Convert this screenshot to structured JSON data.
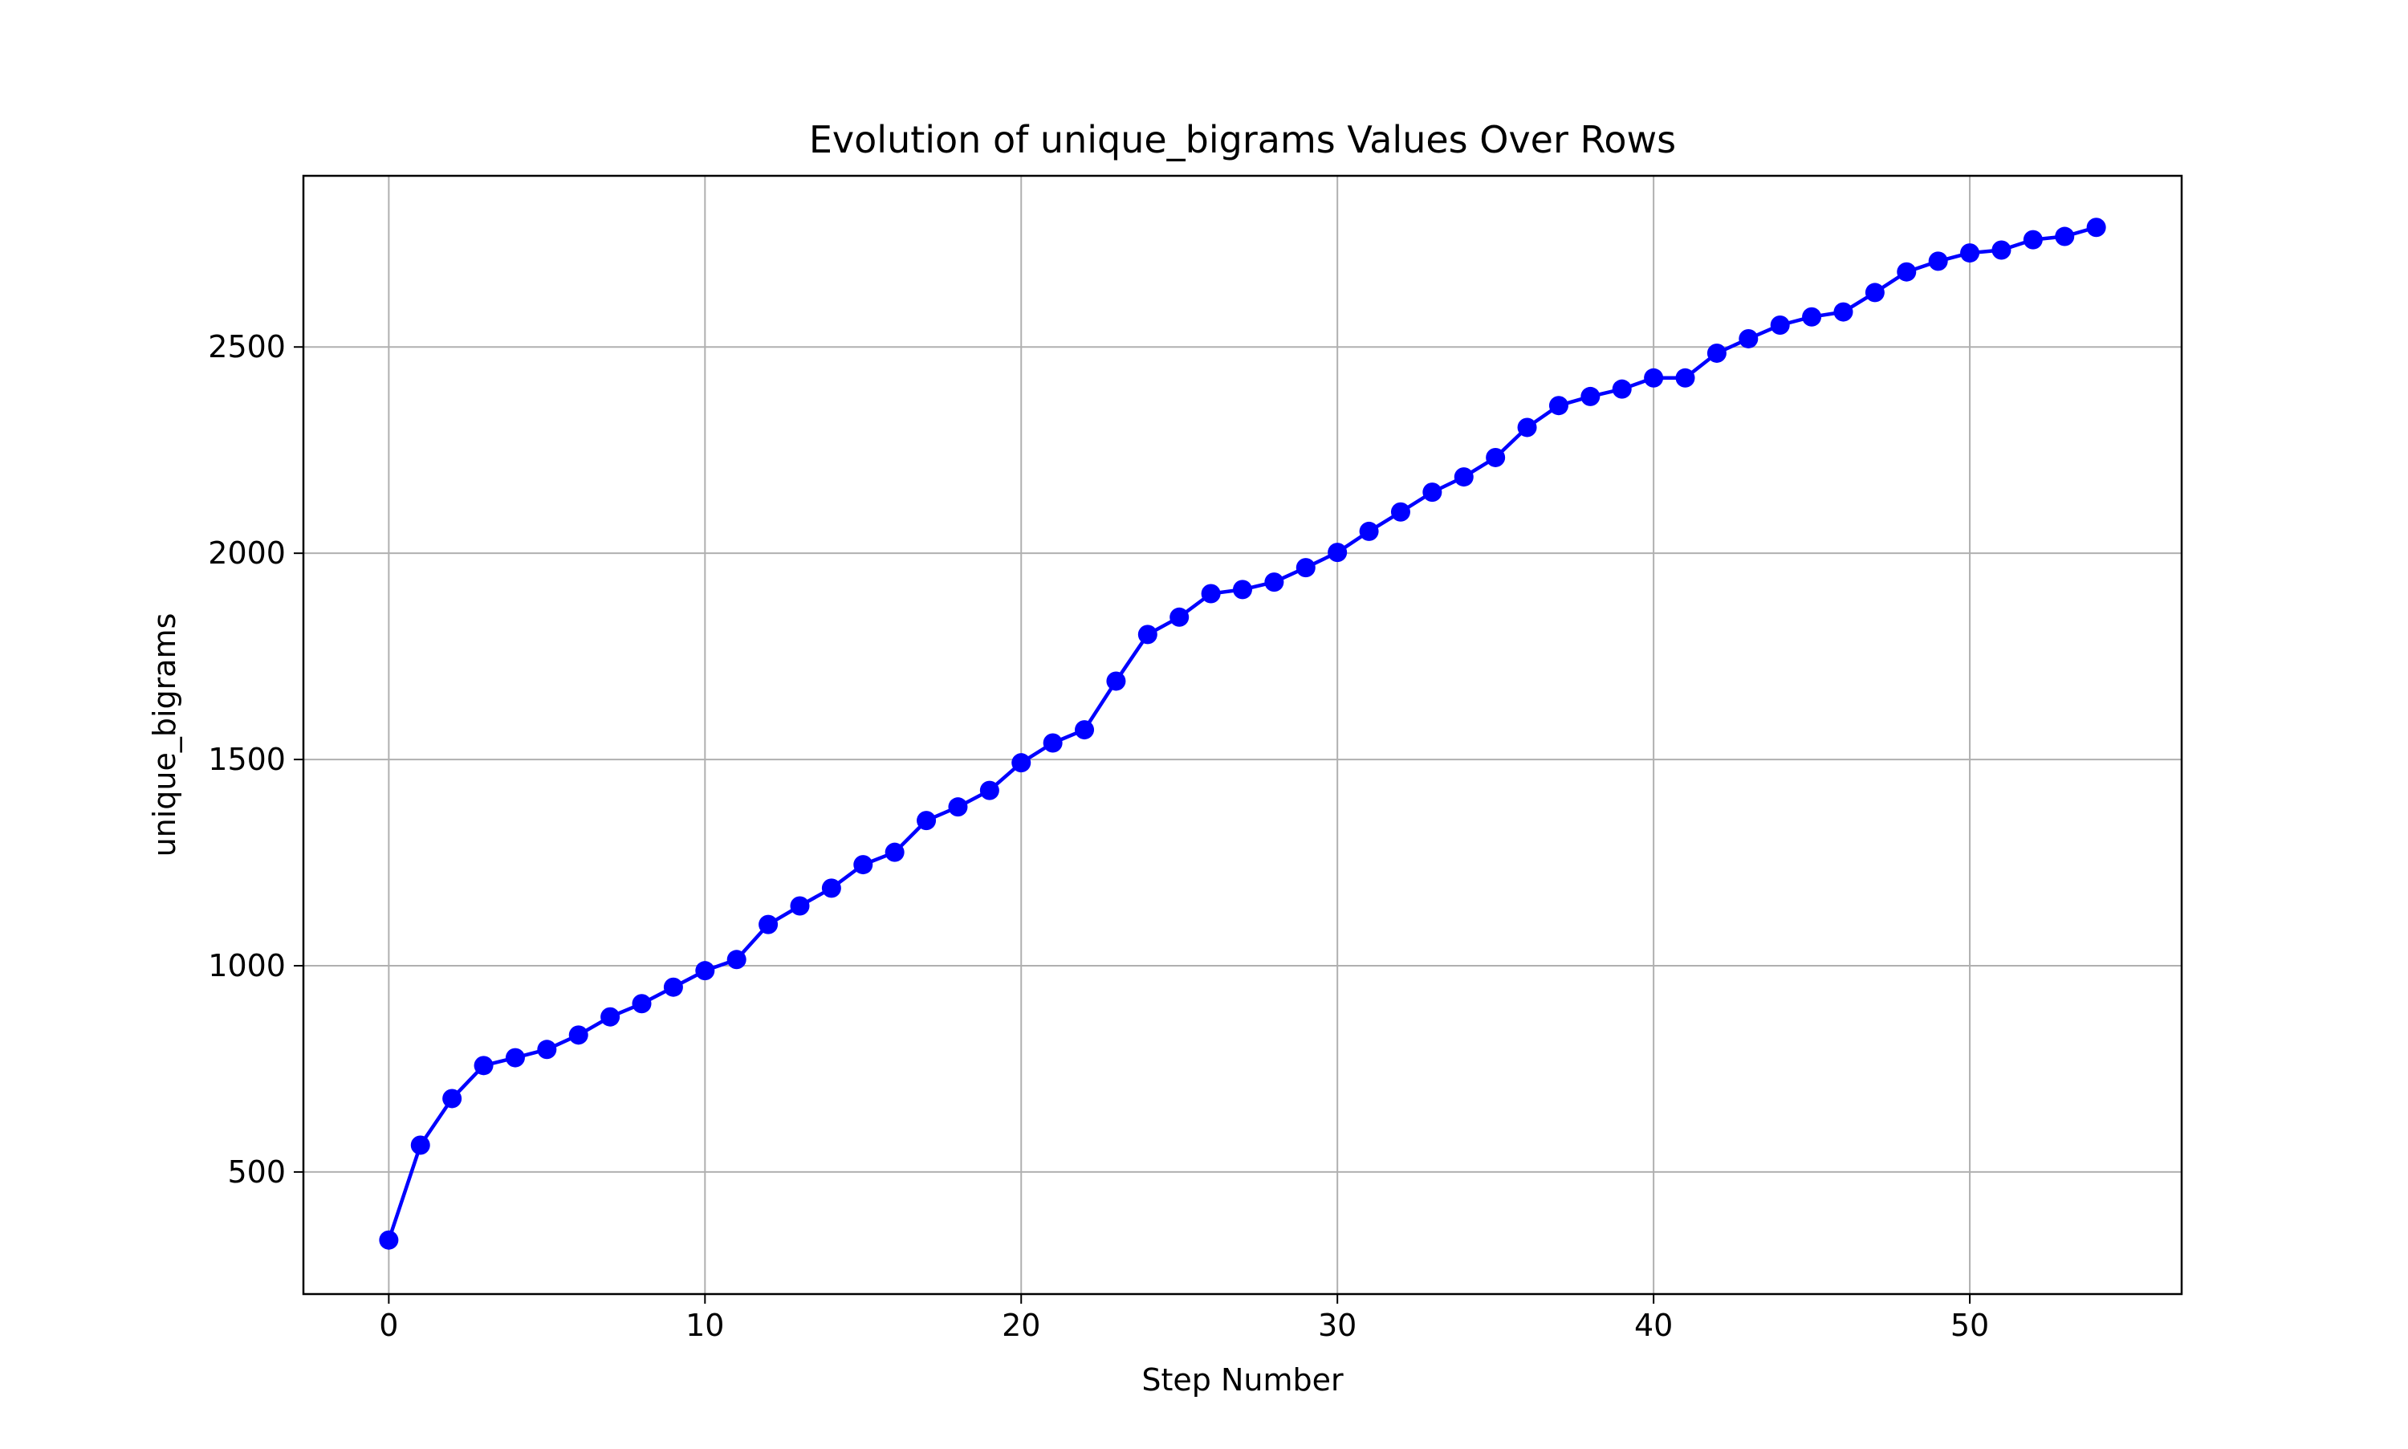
{
  "chart_data": {
    "type": "line",
    "title": "Evolution of unique_bigrams Values Over Rows",
    "xlabel": "Step Number",
    "ylabel": "unique_bigrams",
    "xlim": [
      -2.7,
      56.7
    ],
    "ylim": [
      204,
      2915
    ],
    "x_ticks": [
      0,
      10,
      20,
      30,
      40,
      50
    ],
    "y_ticks": [
      500,
      1000,
      1500,
      2000,
      2500
    ],
    "x_tick_labels": [
      "0",
      "10",
      "20",
      "30",
      "40",
      "50"
    ],
    "y_tick_labels": [
      "500",
      "1000",
      "1500",
      "2000",
      "2500"
    ],
    "grid": true,
    "series": [
      {
        "color": "#0000ff",
        "marker": "circle",
        "x": [
          0,
          1,
          2,
          3,
          4,
          5,
          6,
          7,
          8,
          9,
          10,
          11,
          12,
          13,
          14,
          15,
          16,
          17,
          18,
          19,
          20,
          21,
          22,
          23,
          24,
          25,
          26,
          27,
          28,
          29,
          30,
          31,
          32,
          33,
          34,
          35,
          36,
          37,
          38,
          39,
          40,
          41,
          42,
          43,
          44,
          45,
          46,
          47,
          48,
          49,
          50,
          51,
          52,
          53,
          54
        ],
        "y": [
          335,
          565,
          678,
          758,
          777,
          797,
          832,
          876,
          908,
          948,
          988,
          1015,
          1100,
          1145,
          1188,
          1245,
          1275,
          1352,
          1385,
          1425,
          1492,
          1540,
          1572,
          1690,
          1803,
          1845,
          1902,
          1912,
          1930,
          1965,
          2002,
          2053,
          2100,
          2148,
          2185,
          2232,
          2305,
          2358,
          2380,
          2398,
          2425,
          2425,
          2485,
          2520,
          2553,
          2573,
          2585,
          2632,
          2682,
          2708,
          2728,
          2735,
          2760,
          2768,
          2790
        ]
      }
    ]
  }
}
